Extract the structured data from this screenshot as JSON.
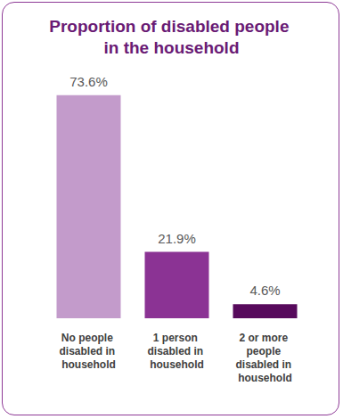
{
  "chart_data": {
    "type": "bar",
    "title": "Proportion of disabled people in the household",
    "categories": [
      "No people disabled in household",
      "1 person disabled in household",
      "2 or more people disabled in household"
    ],
    "values": [
      73.6,
      21.9,
      4.6
    ],
    "value_labels": [
      "73.6%",
      "21.9%",
      "4.6%"
    ],
    "colors": [
      "#c39bcb",
      "#8b3394",
      "#570a5c"
    ],
    "ylim": [
      0,
      80
    ],
    "grid": false,
    "data_labels": true,
    "tick_labels": "x"
  }
}
